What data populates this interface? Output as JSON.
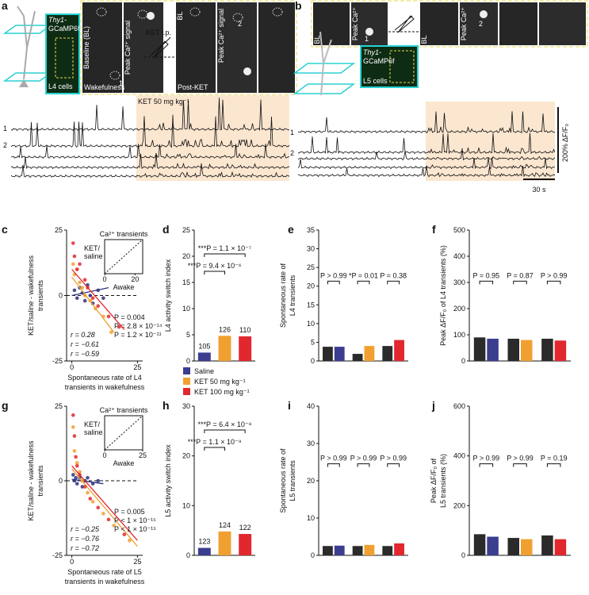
{
  "figure": {
    "a": {
      "letter": "a",
      "line1": "Thy1-",
      "line2": "GCaMP6f",
      "cells": "L4 cells",
      "bl": "Baseline (BL)",
      "peak": "Peak Ca²⁺ signal",
      "wake": "Wakefulness",
      "inj": "KET i.p.",
      "bl2": "BL",
      "peak2": "Peak Ca²⁺ signal",
      "post": "Post-KET",
      "dose": "KET 50 mg kg⁻¹",
      "roi1": "1",
      "roi2": "2",
      "trace1": "1",
      "trace2": "2"
    },
    "b": {
      "letter": "b",
      "bl": "BL",
      "peak": "Peak Ca²⁺",
      "bl2": "BL",
      "peak2": "Peak Ca²⁺",
      "roi1": "1",
      "roi2": "2",
      "line1": "Thy1-",
      "line2": "GCaMP6f",
      "cells": "L5 cells",
      "trace1": "1",
      "trace2": "2",
      "scale_y": "200% ΔF/F₀",
      "scale_x": "30 s"
    }
  },
  "chart_data": [
    {
      "type": "scatter",
      "letter": "c",
      "ylabel": [
        "KET/saline - wakefulness",
        "transients"
      ],
      "xlabel": [
        "Spontaneous rate of L4",
        "transients in wakefulness"
      ],
      "xlim": [
        -2,
        27
      ],
      "ylim": [
        -25,
        25
      ],
      "xticks": [
        0,
        25
      ],
      "yticks": [
        -25,
        0,
        25
      ],
      "series": [
        {
          "name": "Saline",
          "color": "#2d2f7e",
          "x": [
            1,
            2,
            3,
            4,
            5,
            6,
            7,
            8,
            10,
            12
          ],
          "y": [
            2,
            -1,
            3,
            1,
            -2,
            4,
            0,
            -3,
            2,
            -1
          ],
          "fit_x": [
            0,
            14
          ],
          "fit_y": [
            0,
            3
          ]
        },
        {
          "name": "KET 50 mg kg⁻¹",
          "color": "#f0a030",
          "x": [
            0.5,
            1,
            2,
            3,
            4,
            5,
            7,
            9,
            12,
            15
          ],
          "y": [
            12,
            8,
            10,
            5,
            3,
            0,
            -2,
            -5,
            -8,
            -14
          ],
          "fit_x": [
            0,
            16
          ],
          "fit_y": [
            7,
            -14
          ]
        },
        {
          "name": "KET 100 mg kg⁻¹",
          "color": "#e0282e",
          "x": [
            0.5,
            1,
            2,
            3,
            5,
            6,
            8,
            10,
            14,
            18
          ],
          "y": [
            20,
            15,
            10,
            12,
            6,
            3,
            -1,
            -4,
            -8,
            -12
          ],
          "fit_x": [
            0,
            20
          ],
          "fit_y": [
            10,
            -13
          ]
        }
      ],
      "stats_r": [
        "r = 0.28",
        "r = −0.61",
        "r = −0.59"
      ],
      "stats_p": [
        "P = 0.004",
        "P = 2.8 × 10⁻¹⁴",
        "P = 1.2 × 10⁻¹¹"
      ],
      "inset": {
        "title": "Ca²⁺ transients",
        "xlabel": "Awake",
        "ylabel": [
          "KET/",
          "saline"
        ],
        "xlim": [
          0,
          25
        ],
        "xticks": [
          0,
          20
        ]
      }
    },
    {
      "type": "bar",
      "letter": "d",
      "ylabel": [
        "L4 activity switch index"
      ],
      "ylim": [
        0,
        25
      ],
      "yticks": [
        0,
        5,
        10,
        15,
        20,
        25
      ],
      "values": [
        1.6,
        4.8,
        4.7
      ],
      "colors": [
        "#3b3d8f",
        "#f0a030",
        "#e0282e"
      ],
      "counts": [
        105,
        126,
        110
      ],
      "pvalues": [
        "***P = 1.1 × 10⁻⁷",
        "***P = 9.4 × 10⁻⁶"
      ],
      "legend": [
        "Saline",
        "KET 50 mg kg⁻¹",
        "KET 100 mg kg⁻¹"
      ]
    },
    {
      "type": "grouped_bar",
      "letter": "e",
      "ylabel": [
        "Spontaneous rate of",
        "L4 transients"
      ],
      "ylim": [
        0,
        35
      ],
      "yticks": [
        0,
        5,
        10,
        15,
        20,
        25,
        30,
        35
      ],
      "values": [
        [
          3.8,
          3.8
        ],
        [
          1.9,
          4.0
        ],
        [
          4.0,
          5.6
        ]
      ],
      "colors": [
        "#2b2b2b",
        "#3b3d8f",
        "#f0a030",
        "#e0282e"
      ],
      "pvalues": [
        "P > 0.99",
        "*P = 0.01",
        "P = 0.38"
      ]
    },
    {
      "type": "grouped_bar",
      "letter": "f",
      "ylabel": [
        "Peak ΔF/F₀ of L4 transients (%)"
      ],
      "ylim": [
        0,
        500
      ],
      "yticks": [
        0,
        100,
        200,
        300,
        400,
        500
      ],
      "values": [
        [
          90,
          85
        ],
        [
          85,
          80
        ],
        [
          85,
          78
        ]
      ],
      "colors": [
        "#2b2b2b",
        "#3b3d8f",
        "#f0a030",
        "#e0282e"
      ],
      "pvalues": [
        "P = 0.95",
        "P = 0.87",
        "P > 0.99"
      ]
    },
    {
      "type": "scatter",
      "letter": "g",
      "ylabel": [
        "KET/saline - wakefulness",
        "transients"
      ],
      "xlabel": [
        "Spontaneous rate of L5",
        "transients in wakefulness"
      ],
      "xlim": [
        -2,
        27
      ],
      "ylim": [
        -25,
        25
      ],
      "xticks": [
        0,
        25
      ],
      "yticks": [
        -25,
        0,
        25
      ],
      "series": [
        {
          "name": "Saline",
          "color": "#2d2f7e",
          "x": [
            0.5,
            1,
            1.5,
            2,
            3,
            4,
            5,
            6,
            8,
            10
          ],
          "y": [
            2,
            0,
            1,
            -1,
            1,
            -2,
            0,
            1,
            -1,
            0
          ],
          "fit_x": [
            0,
            12
          ],
          "fit_y": [
            0.5,
            -1
          ]
        },
        {
          "name": "KET 50 mg kg⁻¹",
          "color": "#f0a030",
          "x": [
            0.5,
            1,
            2,
            3,
            4,
            6,
            8,
            12,
            16,
            22
          ],
          "y": [
            18,
            10,
            6,
            3,
            0,
            -4,
            -7,
            -11,
            -15,
            -20
          ],
          "fit_x": [
            0,
            25
          ],
          "fit_y": [
            4,
            -22
          ]
        },
        {
          "name": "KET 100 mg kg⁻¹",
          "color": "#e0282e",
          "x": [
            0.5,
            1,
            1.5,
            2,
            3,
            5,
            7,
            10,
            14,
            20
          ],
          "y": [
            22,
            15,
            8,
            5,
            2,
            -2,
            -6,
            -9,
            -13,
            -18
          ],
          "fit_x": [
            0,
            25
          ],
          "fit_y": [
            5,
            -20
          ]
        }
      ],
      "stats_r": [
        "r = −0.25",
        "r = −0.76",
        "r = −0.72"
      ],
      "stats_p": [
        "P = 0.005",
        "P < 1 × 10⁻¹⁵",
        "P < 1 × 10⁻¹⁵"
      ],
      "inset": {
        "title": "Ca²⁺ transients",
        "xlabel": "Awake",
        "ylabel": [
          "KET/",
          "saline"
        ],
        "xlim": [
          0,
          25
        ],
        "xticks": [
          0,
          25
        ]
      }
    },
    {
      "type": "bar",
      "letter": "h",
      "ylabel": [
        "L5 activity switch index"
      ],
      "ylim": [
        0,
        30
      ],
      "yticks": [
        0,
        10,
        20,
        30
      ],
      "values": [
        1.5,
        4.8,
        4.3
      ],
      "colors": [
        "#3b3d8f",
        "#f0a030",
        "#e0282e"
      ],
      "counts": [
        123,
        124,
        122
      ],
      "pvalues": [
        "***P = 6.4 × 10⁻⁸",
        "***P = 1.1 × 10⁻⁹"
      ]
    },
    {
      "type": "grouped_bar",
      "letter": "i",
      "ylabel": [
        "Spontaneous rate of",
        "L5 transients"
      ],
      "ylim": [
        0,
        40
      ],
      "yticks": [
        0,
        10,
        20,
        30,
        40
      ],
      "values": [
        [
          2.5,
          2.6
        ],
        [
          2.5,
          2.8
        ],
        [
          2.5,
          3.2
        ]
      ],
      "colors": [
        "#2b2b2b",
        "#3b3d8f",
        "#f0a030",
        "#e0282e"
      ],
      "pvalues": [
        "P > 0.99",
        "P > 0.99",
        "P > 0.99"
      ]
    },
    {
      "type": "grouped_bar",
      "letter": "j",
      "ylabel": [
        "Peak ΔF/F₀ of",
        "L5 transients (%)"
      ],
      "ylim": [
        0,
        600
      ],
      "yticks": [
        0,
        200,
        400,
        600
      ],
      "values": [
        [
          85,
          75
        ],
        [
          70,
          65
        ],
        [
          80,
          65
        ]
      ],
      "colors": [
        "#2b2b2b",
        "#3b3d8f",
        "#f0a030",
        "#e0282e"
      ],
      "pvalues": [
        "P > 0.99",
        "P > 0.99",
        "P = 0.19"
      ]
    }
  ]
}
